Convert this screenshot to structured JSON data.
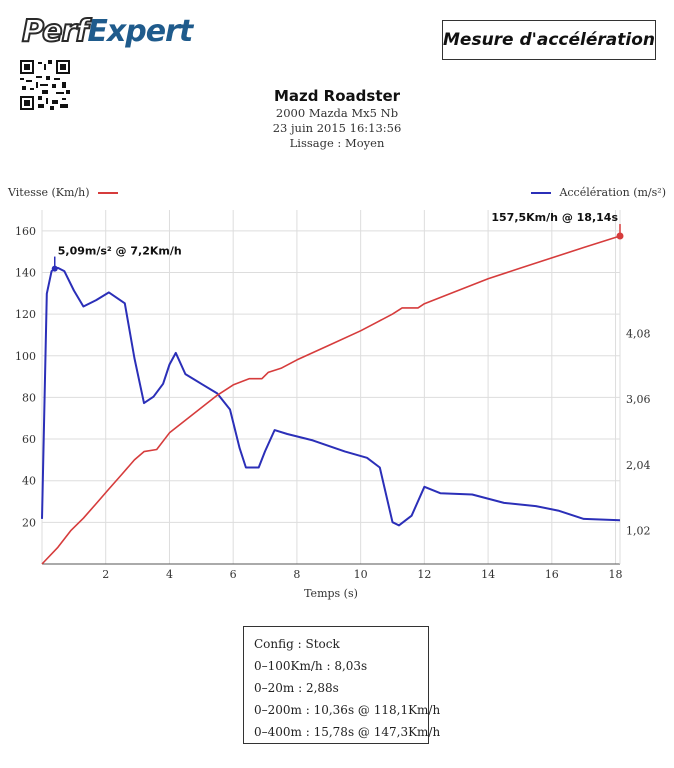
{
  "brand": {
    "logo_part1": "Perf",
    "logo_part2": "Expert"
  },
  "mode_label": "Mesure d'accélération",
  "header": {
    "title": "Mazd Roadster",
    "vehicle": "2000 Mazda Mx5 Nb",
    "datetime": "23 juin 2015 16:13:56",
    "smoothing": "Lissage : Moyen"
  },
  "colors": {
    "speed": "#d63c3c",
    "accel": "#2b2fb8",
    "grid": "#dddddd",
    "axis": "#555555"
  },
  "chart_data": {
    "type": "line",
    "xlabel": "Temps (s)",
    "xlim": [
      0,
      18.14
    ],
    "xticks": [
      2,
      4,
      6,
      8,
      10,
      12,
      14,
      16,
      18
    ],
    "grid": true,
    "series": [
      {
        "name": "Vitesse (Km/h)",
        "axis": "left",
        "ylim": [
          0,
          170
        ],
        "yticks": [
          20,
          40,
          60,
          80,
          100,
          120,
          140,
          160
        ],
        "points": [
          [
            0,
            0
          ],
          [
            0.5,
            8
          ],
          [
            0.9,
            16
          ],
          [
            1.3,
            22
          ],
          [
            1.7,
            29
          ],
          [
            2.1,
            36
          ],
          [
            2.5,
            43
          ],
          [
            2.9,
            50
          ],
          [
            3.2,
            54
          ],
          [
            3.6,
            55
          ],
          [
            4.0,
            63
          ],
          [
            4.5,
            69
          ],
          [
            5.0,
            75
          ],
          [
            5.5,
            81
          ],
          [
            6.0,
            86
          ],
          [
            6.5,
            89
          ],
          [
            6.9,
            89
          ],
          [
            7.1,
            92
          ],
          [
            7.5,
            94
          ],
          [
            8.0,
            98
          ],
          [
            9.0,
            105
          ],
          [
            10.0,
            112
          ],
          [
            10.5,
            116
          ],
          [
            11.0,
            120
          ],
          [
            11.3,
            123
          ],
          [
            11.8,
            123
          ],
          [
            12.0,
            125
          ],
          [
            13.0,
            131
          ],
          [
            14.0,
            137
          ],
          [
            15.0,
            142
          ],
          [
            16.0,
            147
          ],
          [
            17.0,
            152
          ],
          [
            18.14,
            157.5
          ]
        ]
      },
      {
        "name": "Accélération (m/s²)",
        "axis": "right",
        "ylim": [
          0.5,
          6.0
        ],
        "yticks": [
          1.02,
          2.04,
          3.06,
          4.08
        ],
        "tick_labels": [
          "1,02",
          "2,04",
          "3,06",
          "4,08"
        ],
        "points": [
          [
            0,
            1.2
          ],
          [
            0.15,
            4.7
          ],
          [
            0.3,
            5.05
          ],
          [
            0.4,
            5.09
          ],
          [
            0.5,
            5.1
          ],
          [
            0.7,
            5.05
          ],
          [
            1.0,
            4.75
          ],
          [
            1.3,
            4.5
          ],
          [
            1.7,
            4.6
          ],
          [
            2.1,
            4.72
          ],
          [
            2.6,
            4.55
          ],
          [
            2.9,
            3.7
          ],
          [
            3.2,
            3.0
          ],
          [
            3.5,
            3.1
          ],
          [
            3.8,
            3.3
          ],
          [
            4.0,
            3.6
          ],
          [
            4.2,
            3.78
          ],
          [
            4.5,
            3.45
          ],
          [
            5.0,
            3.3
          ],
          [
            5.5,
            3.15
          ],
          [
            5.9,
            2.9
          ],
          [
            6.2,
            2.3
          ],
          [
            6.4,
            2.0
          ],
          [
            6.8,
            2.0
          ],
          [
            7.0,
            2.25
          ],
          [
            7.3,
            2.58
          ],
          [
            7.7,
            2.52
          ],
          [
            8.5,
            2.42
          ],
          [
            9.5,
            2.25
          ],
          [
            10.2,
            2.15
          ],
          [
            10.6,
            2.0
          ],
          [
            11.0,
            1.15
          ],
          [
            11.2,
            1.1
          ],
          [
            11.6,
            1.25
          ],
          [
            12.0,
            1.7
          ],
          [
            12.5,
            1.6
          ],
          [
            13.5,
            1.58
          ],
          [
            14.5,
            1.45
          ],
          [
            15.5,
            1.4
          ],
          [
            16.2,
            1.33
          ],
          [
            17.0,
            1.2
          ],
          [
            18.14,
            1.18
          ]
        ]
      }
    ],
    "annotations": [
      {
        "series": 0,
        "x": 18.14,
        "y": 157.5,
        "text": "157,5Km/h @ 18,14s"
      },
      {
        "series": 1,
        "x": 0.4,
        "y": 5.09,
        "text": "5,09m/s² @ 7,2Km/h"
      }
    ]
  },
  "stats": {
    "config": "Config : Stock",
    "zero_100": "0–100Km/h : 8,03s",
    "zero_20m": "0–20m : 2,88s",
    "zero_200m": "0–200m : 10,36s @ 118,1Km/h",
    "zero_400m": "0–400m : 15,78s @ 147,3Km/h"
  }
}
